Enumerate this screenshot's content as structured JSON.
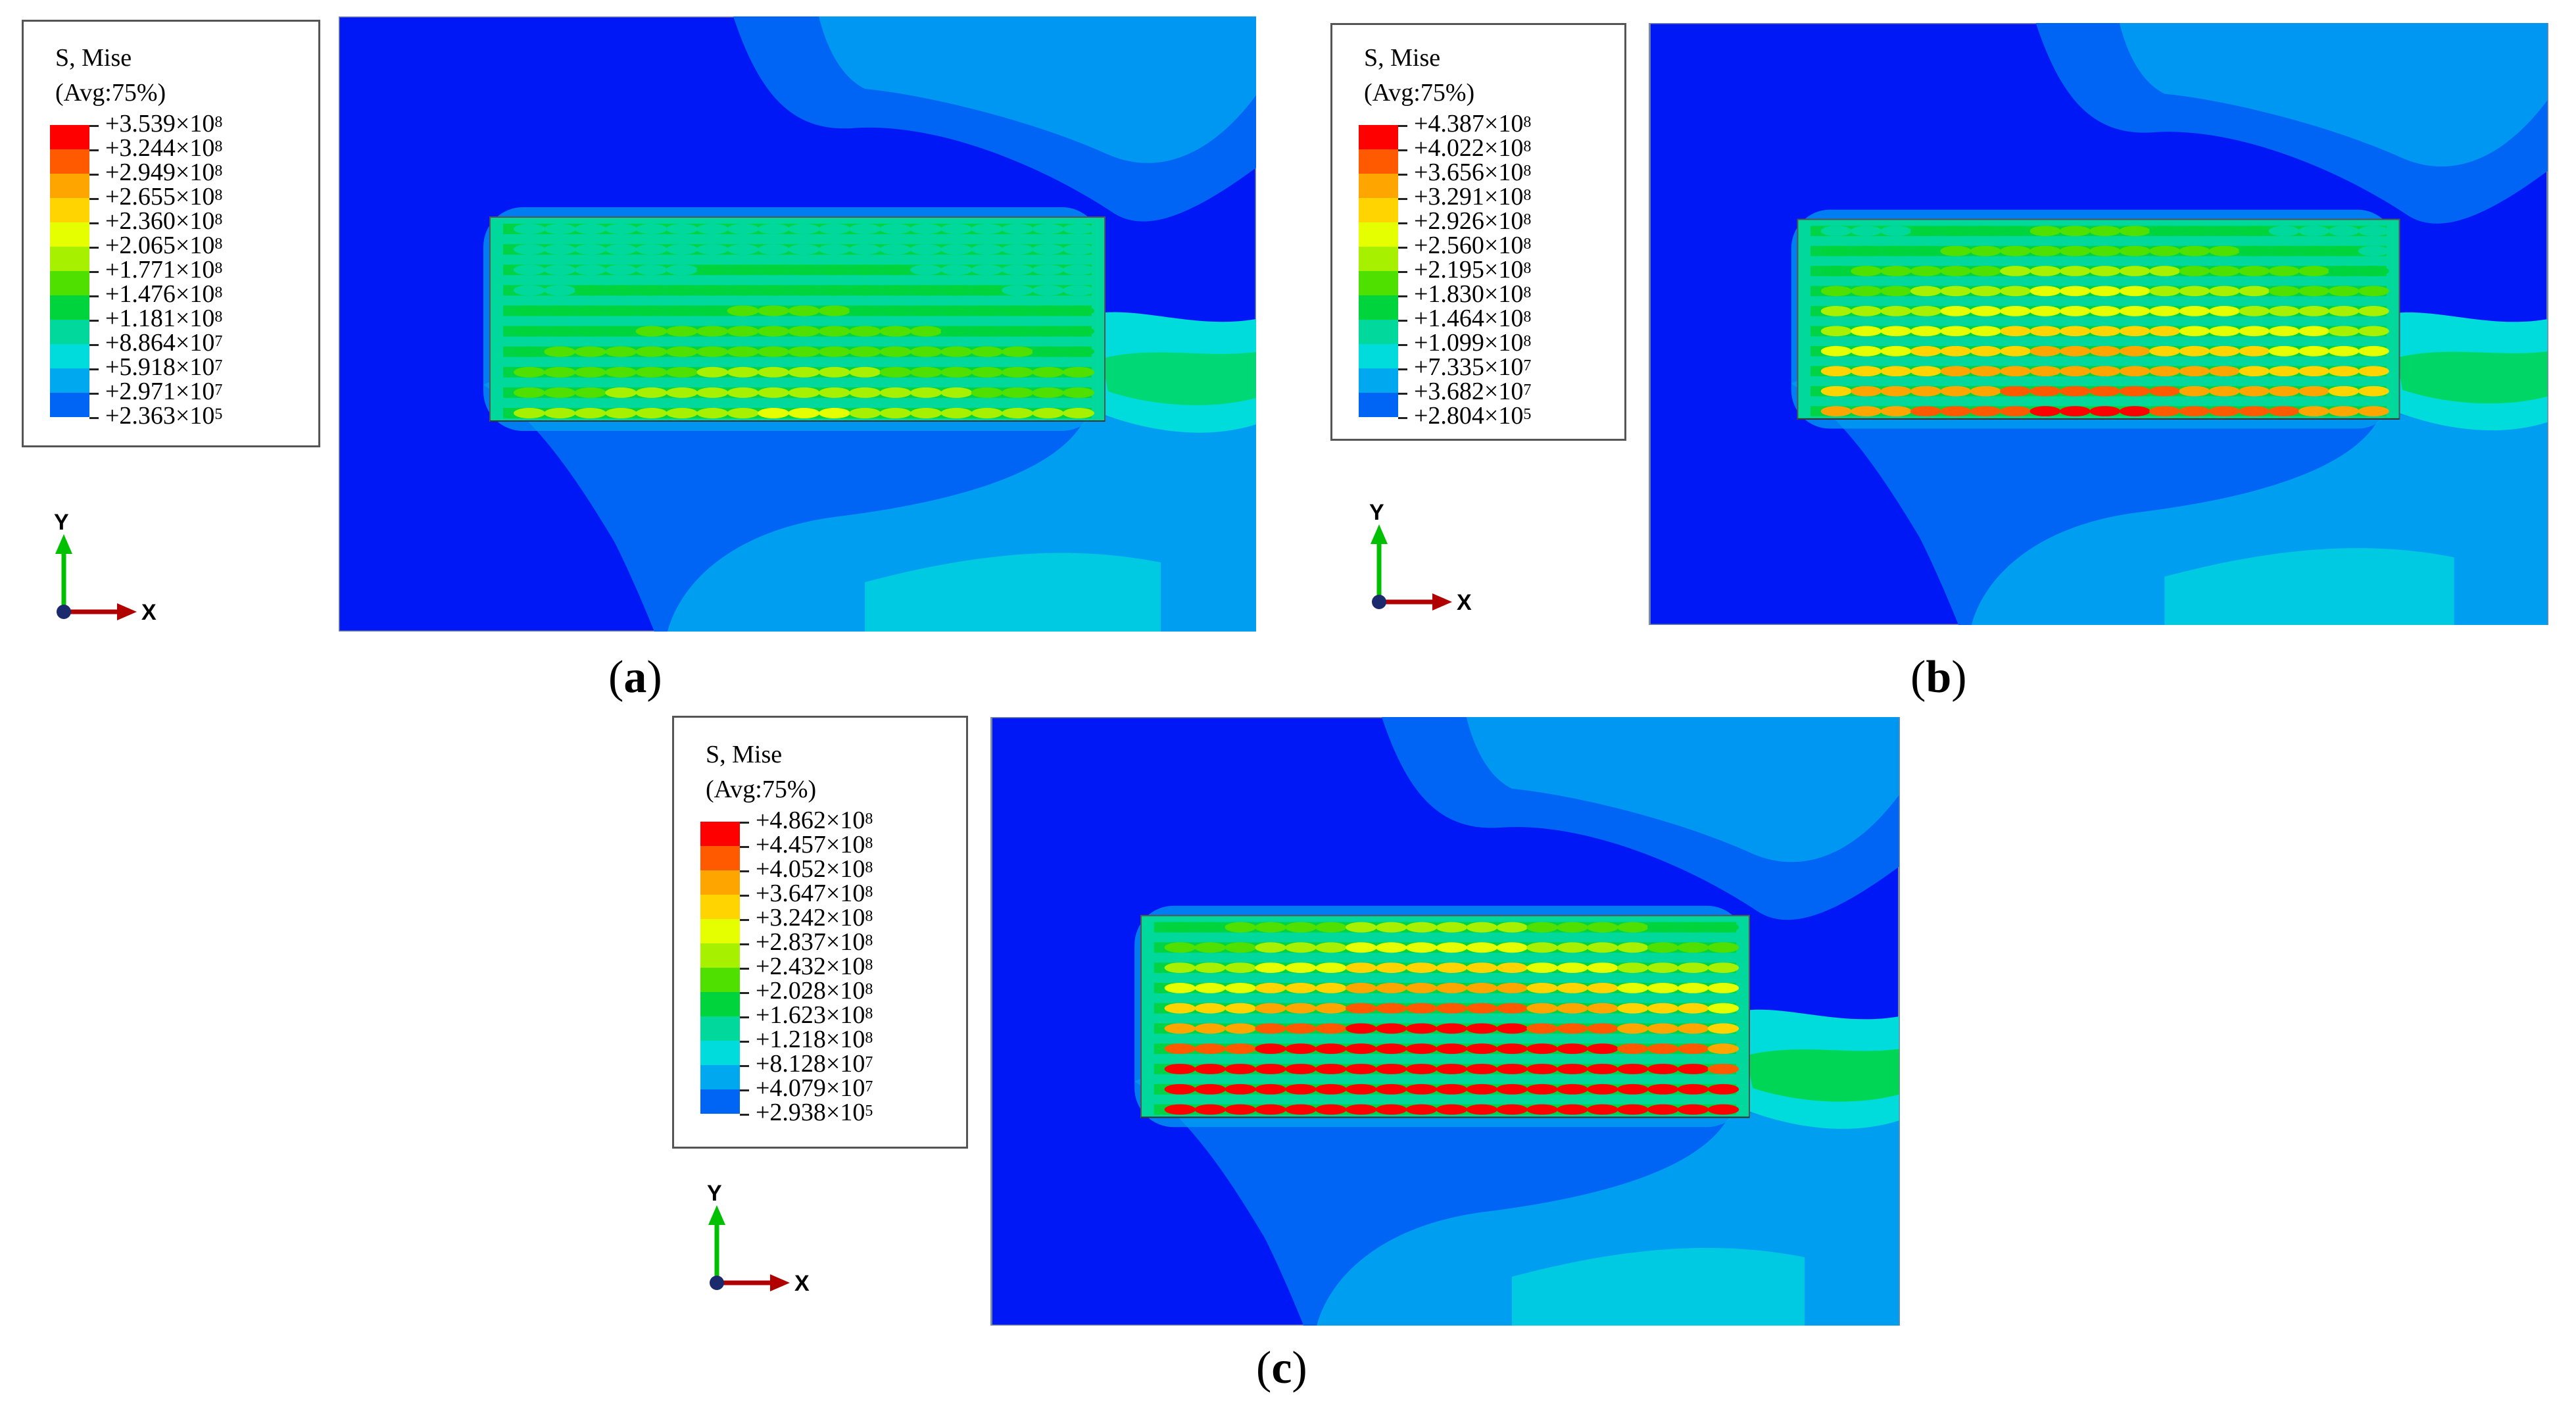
{
  "legend_title_line1": "S, Mise",
  "legend_title_line2": "(Avg:75%)",
  "axis_labels": {
    "y": "Y",
    "x": "X"
  },
  "legend_colors": [
    "#ff0000",
    "#ff5a00",
    "#ffa500",
    "#ffd400",
    "#e6ff00",
    "#a6f000",
    "#4fe000",
    "#00d43c",
    "#00d89c",
    "#00dcdc",
    "#00a8f0",
    "#0064f5",
    "#0018f5"
  ],
  "panels": [
    {
      "id": "a",
      "caption_letter": "a",
      "legend_values": [
        {
          "m": "+3.539",
          "e": "8"
        },
        {
          "m": "+3.244",
          "e": "8"
        },
        {
          "m": "+2.949",
          "e": "8"
        },
        {
          "m": "+2.655",
          "e": "8"
        },
        {
          "m": "+2.360",
          "e": "8"
        },
        {
          "m": "+2.065",
          "e": "8"
        },
        {
          "m": "+1.771",
          "e": "8"
        },
        {
          "m": "+1.476",
          "e": "8"
        },
        {
          "m": "+1.181",
          "e": "8"
        },
        {
          "m": "+8.864",
          "e": "7"
        },
        {
          "m": "+5.918",
          "e": "7"
        },
        {
          "m": "+2.971",
          "e": "7"
        },
        {
          "m": "+2.363",
          "e": "5"
        }
      ],
      "stress_level": 0.35
    },
    {
      "id": "b",
      "caption_letter": "b",
      "legend_values": [
        {
          "m": "+4.387",
          "e": "8"
        },
        {
          "m": "+4.022",
          "e": "8"
        },
        {
          "m": "+3.656",
          "e": "8"
        },
        {
          "m": "+3.291",
          "e": "8"
        },
        {
          "m": "+2.926",
          "e": "8"
        },
        {
          "m": "+2.560",
          "e": "8"
        },
        {
          "m": "+2.195",
          "e": "8"
        },
        {
          "m": "+1.830",
          "e": "8"
        },
        {
          "m": "+1.464",
          "e": "8"
        },
        {
          "m": "+1.099",
          "e": "8"
        },
        {
          "m": "+7.335",
          "e": "7"
        },
        {
          "m": "+3.682",
          "e": "7"
        },
        {
          "m": "+2.804",
          "e": "5"
        }
      ],
      "stress_level": 0.6
    },
    {
      "id": "c",
      "caption_letter": "c",
      "legend_values": [
        {
          "m": "+4.862",
          "e": "8"
        },
        {
          "m": "+4.457",
          "e": "8"
        },
        {
          "m": "+4.052",
          "e": "8"
        },
        {
          "m": "+3.647",
          "e": "8"
        },
        {
          "m": "+3.242",
          "e": "8"
        },
        {
          "m": "+2.837",
          "e": "8"
        },
        {
          "m": "+2.432",
          "e": "8"
        },
        {
          "m": "+2.028",
          "e": "8"
        },
        {
          "m": "+1.623",
          "e": "8"
        },
        {
          "m": "+1.218",
          "e": "8"
        },
        {
          "m": "+8.128",
          "e": "7"
        },
        {
          "m": "+4.079",
          "e": "7"
        },
        {
          "m": "+2.938",
          "e": "5"
        }
      ],
      "stress_level": 0.85
    }
  ]
}
